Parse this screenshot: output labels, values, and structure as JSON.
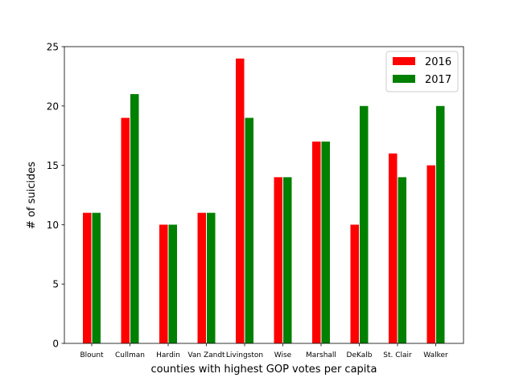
{
  "chart_data": {
    "type": "bar",
    "title": "",
    "xlabel": "counties with highest GOP votes per capita",
    "ylabel": "# of suicides",
    "ylim": [
      0,
      25
    ],
    "yticks": [
      0,
      5,
      10,
      15,
      20,
      25
    ],
    "grid": false,
    "legend_position": "top-right",
    "categories": [
      "Blount",
      "Cullman",
      "Hardin",
      "Van Zandt",
      "Livingston",
      "Wise",
      "Marshall",
      "DeKalb",
      "St. Clair",
      "Walker"
    ],
    "series": [
      {
        "name": "2016",
        "color": "#ff0000",
        "values": [
          11,
          19,
          10,
          11,
          24,
          14,
          17,
          10,
          16,
          15
        ]
      },
      {
        "name": "2017",
        "color": "#008000",
        "values": [
          11,
          21,
          10,
          11,
          19,
          14,
          17,
          20,
          14,
          20
        ]
      }
    ]
  }
}
